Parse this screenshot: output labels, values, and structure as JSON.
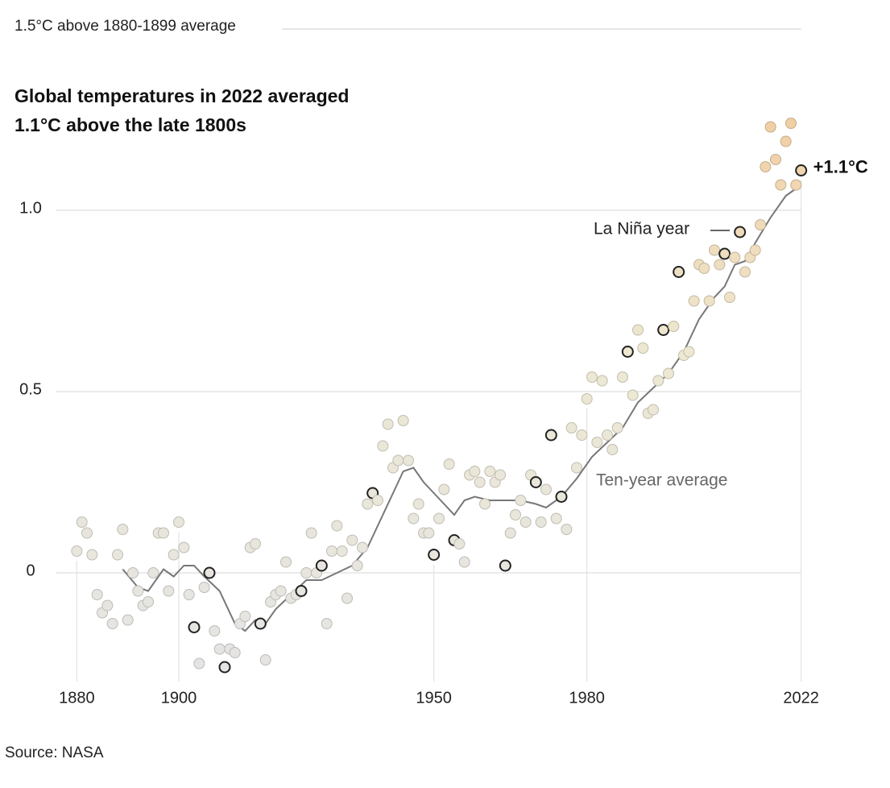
{
  "chart_data": {
    "type": "scatter",
    "title": [
      "Global temperatures in 2022 averaged",
      "1.1°C above the late 1800s"
    ],
    "source": "Source: NASA",
    "reference_line": {
      "value": 1.5,
      "label": "1.5°C above 1880-1899 average"
    },
    "la_nina_label": "La Niña year",
    "end_label": "+1.1°C",
    "x": [
      1880,
      1881,
      1882,
      1883,
      1884,
      1885,
      1886,
      1887,
      1888,
      1889,
      1890,
      1891,
      1892,
      1893,
      1894,
      1895,
      1896,
      1897,
      1898,
      1899,
      1900,
      1901,
      1902,
      1903,
      1904,
      1905,
      1906,
      1907,
      1908,
      1909,
      1910,
      1911,
      1912,
      1913,
      1914,
      1915,
      1916,
      1917,
      1918,
      1919,
      1920,
      1921,
      1922,
      1923,
      1924,
      1925,
      1926,
      1927,
      1928,
      1929,
      1930,
      1931,
      1932,
      1933,
      1934,
      1935,
      1936,
      1937,
      1938,
      1939,
      1940,
      1941,
      1942,
      1943,
      1944,
      1945,
      1946,
      1947,
      1948,
      1949,
      1950,
      1951,
      1952,
      1953,
      1954,
      1955,
      1956,
      1957,
      1958,
      1959,
      1960,
      1961,
      1962,
      1963,
      1964,
      1965,
      1966,
      1967,
      1968,
      1969,
      1970,
      1971,
      1972,
      1973,
      1974,
      1975,
      1976,
      1977,
      1978,
      1979,
      1980,
      1981,
      1982,
      1983,
      1984,
      1985,
      1986,
      1987,
      1988,
      1989,
      1990,
      1991,
      1992,
      1993,
      1994,
      1995,
      1996,
      1997,
      1998,
      1999,
      2000,
      2001,
      2002,
      2003,
      2004,
      2005,
      2006,
      2007,
      2008,
      2009,
      2010,
      2011,
      2012,
      2013,
      2014,
      2015,
      2016,
      2017,
      2018,
      2019,
      2020,
      2021,
      2022
    ],
    "values": [
      0.06,
      0.14,
      0.11,
      0.05,
      -0.06,
      -0.11,
      -0.09,
      -0.14,
      0.05,
      0.12,
      -0.13,
      0.0,
      -0.05,
      -0.09,
      -0.08,
      0.0,
      0.11,
      0.11,
      -0.05,
      0.05,
      0.14,
      0.07,
      -0.06,
      -0.15,
      -0.25,
      -0.04,
      0.0,
      -0.16,
      -0.21,
      -0.26,
      -0.21,
      -0.22,
      -0.14,
      -0.12,
      0.07,
      0.08,
      -0.14,
      -0.24,
      -0.08,
      -0.06,
      -0.05,
      0.03,
      -0.07,
      -0.06,
      -0.05,
      0.0,
      0.11,
      0.0,
      0.02,
      -0.14,
      0.06,
      0.13,
      0.06,
      -0.07,
      0.09,
      0.02,
      0.07,
      0.19,
      0.22,
      0.2,
      0.35,
      0.41,
      0.29,
      0.31,
      0.42,
      0.31,
      0.15,
      0.19,
      0.11,
      0.11,
      0.05,
      0.15,
      0.23,
      0.3,
      0.09,
      0.08,
      0.03,
      0.27,
      0.28,
      0.25,
      0.19,
      0.28,
      0.25,
      0.27,
      0.02,
      0.11,
      0.16,
      0.2,
      0.14,
      0.27,
      0.25,
      0.14,
      0.23,
      0.38,
      0.15,
      0.21,
      0.12,
      0.4,
      0.29,
      0.38,
      0.48,
      0.54,
      0.36,
      0.53,
      0.38,
      0.34,
      0.4,
      0.54,
      0.61,
      0.49,
      0.67,
      0.62,
      0.44,
      0.45,
      0.53,
      0.67,
      0.55,
      0.68,
      0.83,
      0.6,
      0.61,
      0.75,
      0.85,
      0.84,
      0.75,
      0.89,
      0.85,
      0.88,
      0.76,
      0.87,
      0.94,
      0.83,
      0.87,
      0.89,
      0.96,
      1.12,
      1.23,
      1.14,
      1.07,
      1.19,
      1.24,
      1.07,
      1.11
    ],
    "outlined_years": [
      1903,
      1906,
      1909,
      1916,
      1924,
      1928,
      1938,
      1950,
      1954,
      1964,
      1970,
      1973,
      1975,
      1988,
      1995,
      1998,
      2007,
      2010,
      2022
    ],
    "color_scale": [
      "#e4e4e4",
      "#ede8d2",
      "#f2c592"
    ],
    "line": {
      "name": "Ten-year average",
      "color": "#777777",
      "x": [
        1889,
        1892,
        1894,
        1897,
        1899,
        1901,
        1903,
        1905,
        1908,
        1911,
        1913,
        1915,
        1917,
        1919,
        1922,
        1925,
        1928,
        1931,
        1934,
        1937,
        1940,
        1942,
        1944,
        1946,
        1948,
        1950,
        1952,
        1954,
        1956,
        1958,
        1961,
        1964,
        1967,
        1970,
        1972,
        1975,
        1978,
        1981,
        1984,
        1987,
        1990,
        1993,
        1996,
        1999,
        2002,
        2005,
        2007,
        2009,
        2011,
        2013,
        2016,
        2019,
        2022
      ],
      "values": [
        0.01,
        -0.04,
        -0.05,
        0.01,
        -0.01,
        0.02,
        0.02,
        -0.01,
        -0.05,
        -0.14,
        -0.16,
        -0.13,
        -0.14,
        -0.1,
        -0.06,
        -0.02,
        -0.02,
        0.0,
        0.02,
        0.07,
        0.16,
        0.22,
        0.28,
        0.29,
        0.25,
        0.22,
        0.19,
        0.16,
        0.2,
        0.21,
        0.2,
        0.2,
        0.2,
        0.19,
        0.18,
        0.21,
        0.26,
        0.32,
        0.36,
        0.4,
        0.47,
        0.51,
        0.55,
        0.61,
        0.7,
        0.76,
        0.79,
        0.85,
        0.86,
        0.91,
        0.98,
        1.04,
        1.07
      ]
    },
    "xlim": [
      1870,
      2032
    ],
    "ylim": [
      -0.3,
      1.5
    ],
    "xticks": [
      1880,
      1900,
      1950,
      1980,
      2022
    ],
    "yticks": [
      0,
      0.5,
      {
        "value": 1,
        "label": "1.0"
      }
    ],
    "grid": true
  }
}
